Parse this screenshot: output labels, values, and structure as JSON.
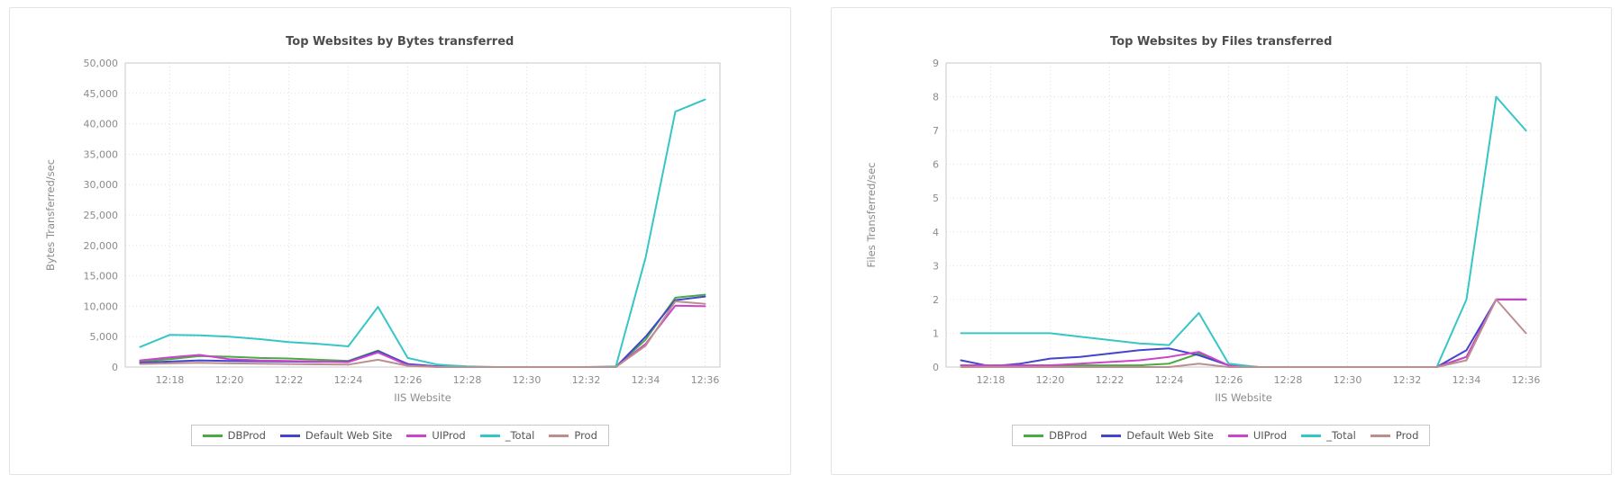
{
  "page": {
    "background": "#ffffff",
    "panel_border": "#e3e3e3"
  },
  "style": {
    "grid_color": "#e0e0e0",
    "plot_border_color": "#c9c9c9",
    "tick_label_color": "#8b8b8b",
    "axis_label_color": "#8b8b8b",
    "title_color": "#4d4d4d"
  },
  "chart_data": [
    {
      "type": "line",
      "title": "Top Websites by Bytes transferred",
      "xlabel": "IIS Website",
      "ylabel": "Bytes Transferred/sec",
      "legend_position": "bottom",
      "grid": true,
      "xlim": [
        16.5,
        36.5
      ],
      "ylim": [
        0,
        50000
      ],
      "x_ticks": {
        "values": [
          18,
          20,
          22,
          24,
          26,
          28,
          30,
          32,
          34,
          36
        ],
        "labels": [
          "12:18",
          "12:20",
          "12:22",
          "12:24",
          "12:26",
          "12:28",
          "12:30",
          "12:32",
          "12:34",
          "12:36"
        ]
      },
      "y_ticks": {
        "values": [
          0,
          5000,
          10000,
          15000,
          20000,
          25000,
          30000,
          35000,
          40000,
          45000,
          50000
        ],
        "labels": [
          "0",
          "5,000",
          "10,000",
          "15,000",
          "20,000",
          "25,000",
          "30,000",
          "35,000",
          "40,000",
          "45,000",
          "50,000"
        ]
      },
      "x": [
        17,
        18,
        19,
        20,
        21,
        22,
        23,
        24,
        25,
        26,
        27,
        28,
        29,
        30,
        31,
        32,
        33,
        34,
        35,
        36
      ],
      "series": [
        {
          "name": "DBProd",
          "color": "#4aaa44",
          "values": [
            900,
            1300,
            1800,
            1700,
            1500,
            1400,
            1200,
            1000,
            2700,
            400,
            100,
            0,
            0,
            0,
            0,
            0,
            0,
            4500,
            11400,
            11900
          ]
        },
        {
          "name": "Default Web Site",
          "color": "#4444cc",
          "values": [
            700,
            900,
            1100,
            1000,
            950,
            900,
            850,
            900,
            2600,
            500,
            100,
            0,
            0,
            0,
            0,
            0,
            0,
            5000,
            11000,
            11600
          ]
        },
        {
          "name": "UIProd",
          "color": "#cc44cc",
          "values": [
            1100,
            1600,
            2000,
            1300,
            1100,
            1000,
            900,
            800,
            2400,
            300,
            50,
            0,
            0,
            0,
            0,
            0,
            0,
            3800,
            10100,
            10000
          ]
        },
        {
          "name": "_Total",
          "color": "#36c6c6",
          "values": [
            3300,
            5300,
            5200,
            5000,
            4600,
            4100,
            3800,
            3400,
            9900,
            1500,
            400,
            100,
            0,
            0,
            0,
            0,
            100,
            18000,
            42000,
            44000
          ]
        },
        {
          "name": "Prod",
          "color": "#bc8f8f",
          "values": [
            500,
            600,
            700,
            600,
            550,
            500,
            450,
            400,
            1200,
            200,
            0,
            0,
            0,
            0,
            0,
            0,
            0,
            3500,
            10800,
            10400
          ]
        }
      ]
    },
    {
      "type": "line",
      "title": "Top Websites by Files transferred",
      "xlabel": "IIS Website",
      "ylabel": "Files Transferred/sec",
      "legend_position": "bottom",
      "grid": true,
      "xlim": [
        16.5,
        36.5
      ],
      "ylim": [
        0,
        9
      ],
      "x_ticks": {
        "values": [
          18,
          20,
          22,
          24,
          26,
          28,
          30,
          32,
          34,
          36
        ],
        "labels": [
          "12:18",
          "12:20",
          "12:22",
          "12:24",
          "12:26",
          "12:28",
          "12:30",
          "12:32",
          "12:34",
          "12:36"
        ]
      },
      "y_ticks": {
        "values": [
          0,
          1,
          2,
          3,
          4,
          5,
          6,
          7,
          8,
          9
        ],
        "labels": [
          "0",
          "1",
          "2",
          "3",
          "4",
          "5",
          "6",
          "7",
          "8",
          "9"
        ]
      },
      "x": [
        17,
        18,
        19,
        20,
        21,
        22,
        23,
        24,
        25,
        26,
        27,
        28,
        29,
        30,
        31,
        32,
        33,
        34,
        35,
        36
      ],
      "series": [
        {
          "name": "DBProd",
          "color": "#4aaa44",
          "values": [
            0.05,
            0.05,
            0.05,
            0.05,
            0.05,
            0.05,
            0.05,
            0.1,
            0.4,
            0.05,
            0,
            0,
            0,
            0,
            0,
            0,
            0,
            0.3,
            2.0,
            2.0
          ]
        },
        {
          "name": "Default Web Site",
          "color": "#4444cc",
          "values": [
            0.2,
            0.02,
            0.1,
            0.25,
            0.3,
            0.4,
            0.5,
            0.55,
            0.35,
            0.05,
            0,
            0,
            0,
            0,
            0,
            0,
            0,
            0.5,
            2.0,
            2.0
          ]
        },
        {
          "name": "UIProd",
          "color": "#cc44cc",
          "values": [
            0.05,
            0.05,
            0.05,
            0.05,
            0.1,
            0.15,
            0.2,
            0.3,
            0.45,
            0.05,
            0,
            0,
            0,
            0,
            0,
            0,
            0,
            0.3,
            2.0,
            2.0
          ]
        },
        {
          "name": "_Total",
          "color": "#36c6c6",
          "values": [
            1.0,
            1.0,
            1.0,
            1.0,
            0.9,
            0.8,
            0.7,
            0.65,
            1.6,
            0.1,
            0,
            0,
            0,
            0,
            0,
            0,
            0,
            2.0,
            8.0,
            7.0
          ]
        },
        {
          "name": "Prod",
          "color": "#bc8f8f",
          "values": [
            0,
            0,
            0,
            0,
            0,
            0,
            0,
            0,
            0.1,
            0,
            0,
            0,
            0,
            0,
            0,
            0,
            0,
            0.2,
            2.0,
            1.0
          ]
        }
      ]
    }
  ]
}
